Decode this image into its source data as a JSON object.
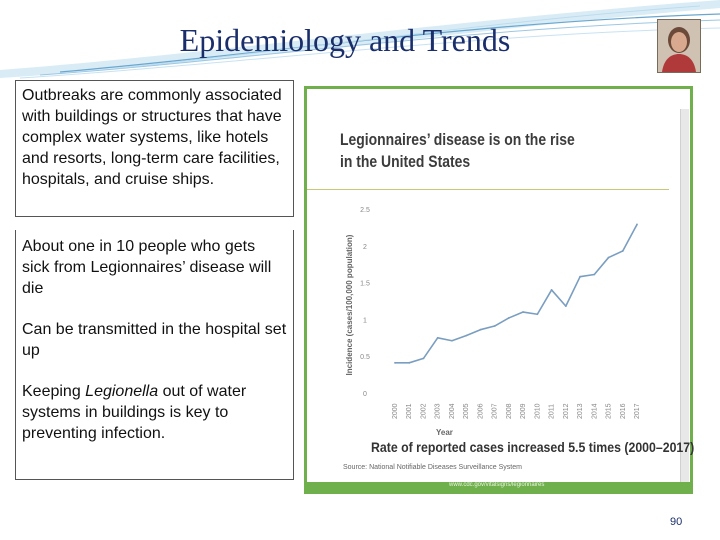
{
  "slide": {
    "title": "Epidemiology and Trends",
    "page_number": "90"
  },
  "text_box_1": {
    "text": "Outbreaks are commonly associated with buildings or structures that have complex water systems, like hotels and resorts, long-term care facilities, hospitals, and cruise ships."
  },
  "text_box_2": {
    "para1": "About one in 10 people who gets sick from Legionnaires’ disease will die",
    "para2": "Can be transmitted in the hospital set up",
    "para3_pre": "Keeping ",
    "para3_italic": "Legionella",
    "para3_post": " out of water systems in buildings is key to preventing infection."
  },
  "colors": {
    "title": "#1a2e6b",
    "figure_border": "#6fb04d",
    "line": "#7a9ec0"
  },
  "chart_data": {
    "type": "line",
    "title": "Legionnaires’ disease is on the rise in the United States",
    "ylabel": "Incidence (cases/100,000 population)",
    "xlabel": "Year",
    "x": [
      "2000",
      "2001",
      "2002",
      "2003",
      "2004",
      "2005",
      "2006",
      "2007",
      "2008",
      "2009",
      "2010",
      "2011",
      "2012",
      "2013",
      "2014",
      "2015",
      "2016",
      "2017"
    ],
    "values": [
      0.41,
      0.41,
      0.47,
      0.75,
      0.71,
      0.78,
      0.86,
      0.91,
      1.02,
      1.1,
      1.07,
      1.4,
      1.18,
      1.58,
      1.61,
      1.84,
      1.93,
      2.29
    ],
    "ylim": [
      0,
      2.5
    ],
    "yticks": [
      "0",
      "0.5",
      "1",
      "1.5",
      "2",
      "2.5"
    ],
    "footnote": "Rate of reported cases increased 5.5 times (2000–2017)",
    "source": "Source: National Notifiable Diseases Surveillance System",
    "url": "www.cdc.gov/vitalsigns/legionnaires"
  }
}
